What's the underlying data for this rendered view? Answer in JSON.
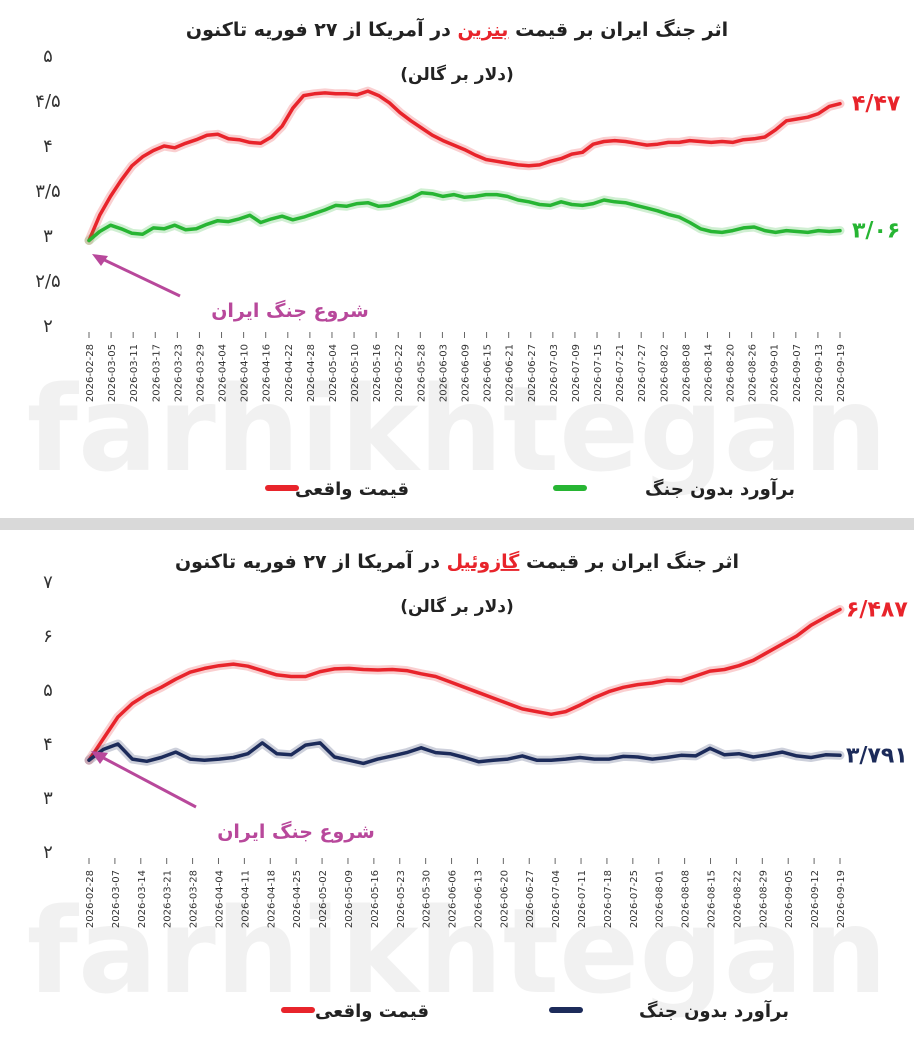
{
  "chart_data": [
    {
      "type": "line",
      "title_parts": [
        "اثر جنگ ایران بر قیمت ",
        "بنزین",
        " در آمریکا از ۲۷ فوریه تاکنون"
      ],
      "subtitle": "(دلار بر گالن)",
      "ylim": [
        2,
        5
      ],
      "yticks": [
        "۲",
        "۲/۵",
        "۳",
        "۳/۵",
        "۴",
        "۴/۵",
        "۵"
      ],
      "ytick_values": [
        2,
        2.5,
        3,
        3.5,
        4,
        4.5,
        5
      ],
      "xticks": [
        "2026-02-28",
        "2026-03-05",
        "2026-03-11",
        "2026-03-17",
        "2026-03-23",
        "2026-03-29",
        "2026-04-04",
        "2026-04-10",
        "2026-04-16",
        "2026-04-22",
        "2026-04-28",
        "2026-05-04",
        "2026-05-10",
        "2026-05-16",
        "2026-05-22",
        "2026-05-28",
        "2026-06-03",
        "2026-06-09",
        "2026-06-15",
        "2026-06-21",
        "2026-06-27",
        "2026-07-03",
        "2026-07-09",
        "2026-07-15",
        "2026-07-21",
        "2026-07-27",
        "2026-08-02",
        "2026-08-08",
        "2026-08-14",
        "2026-08-20",
        "2026-08-26",
        "2026-09-01",
        "2026-09-07",
        "2026-09-13",
        "2026-09-19"
      ],
      "series": [
        {
          "name": "قیمت واقعی",
          "color": "#e8242b",
          "end_label": "۴/۴۷",
          "values": [
            2.95,
            3.23,
            3.44,
            3.62,
            3.78,
            3.88,
            3.95,
            4.0,
            3.98,
            4.03,
            4.07,
            4.12,
            4.13,
            4.08,
            4.07,
            4.04,
            4.03,
            4.1,
            4.22,
            4.42,
            4.56,
            4.58,
            4.59,
            4.58,
            4.58,
            4.57,
            4.61,
            4.56,
            4.48,
            4.37,
            4.28,
            4.2,
            4.12,
            4.06,
            4.01,
            3.96,
            3.9,
            3.85,
            3.83,
            3.81,
            3.79,
            3.78,
            3.79,
            3.83,
            3.86,
            3.91,
            3.93,
            4.02,
            4.05,
            4.06,
            4.05,
            4.03,
            4.01,
            4.02,
            4.04,
            4.04,
            4.06,
            4.05,
            4.04,
            4.05,
            4.04,
            4.07,
            4.08,
            4.1,
            4.18,
            4.28,
            4.3,
            4.32,
            4.36,
            4.44,
            4.47
          ]
        },
        {
          "name": "برآورد بدون جنگ",
          "color": "#27b533",
          "end_label": "۳/۰۶",
          "values": [
            2.95,
            3.05,
            3.12,
            3.08,
            3.03,
            3.02,
            3.09,
            3.08,
            3.12,
            3.07,
            3.08,
            3.13,
            3.17,
            3.16,
            3.19,
            3.23,
            3.15,
            3.19,
            3.22,
            3.18,
            3.21,
            3.25,
            3.29,
            3.34,
            3.33,
            3.36,
            3.37,
            3.33,
            3.34,
            3.38,
            3.42,
            3.48,
            3.47,
            3.44,
            3.46,
            3.43,
            3.44,
            3.46,
            3.46,
            3.44,
            3.4,
            3.38,
            3.35,
            3.34,
            3.38,
            3.35,
            3.34,
            3.36,
            3.4,
            3.38,
            3.37,
            3.34,
            3.31,
            3.28,
            3.24,
            3.21,
            3.15,
            3.08,
            3.05,
            3.04,
            3.06,
            3.09,
            3.1,
            3.06,
            3.04,
            3.06,
            3.05,
            3.04,
            3.06,
            3.05,
            3.06
          ]
        }
      ],
      "annotation": "شروع جنگ ایران",
      "legend_position": "bottom-center",
      "watermark": "farhikhtegan"
    },
    {
      "type": "line",
      "title_parts": [
        "اثر جنگ ایران بر قیمت ",
        "گازوئیل",
        " در آمریکا از ۲۷ فوریه تاکنون"
      ],
      "subtitle": "(دلار بر گالن)",
      "ylim": [
        2,
        7
      ],
      "yticks": [
        "۲",
        "۳",
        "۴",
        "۵",
        "۶",
        "۷"
      ],
      "ytick_values": [
        2,
        3,
        4,
        5,
        6,
        7
      ],
      "xticks": [
        "2026-02-28",
        "2026-03-07",
        "2026-03-14",
        "2026-03-21",
        "2026-03-28",
        "2026-04-04",
        "2026-04-11",
        "2026-04-18",
        "2026-04-25",
        "2026-05-02",
        "2026-05-09",
        "2026-05-16",
        "2026-05-23",
        "2026-05-30",
        "2026-06-06",
        "2026-06-13",
        "2026-06-20",
        "2026-06-27",
        "2026-07-04",
        "2026-07-11",
        "2026-07-18",
        "2026-07-25",
        "2026-08-01",
        "2026-08-08",
        "2026-08-15",
        "2026-08-22",
        "2026-08-29",
        "2026-09-05",
        "2026-09-12",
        "2026-09-19"
      ],
      "series": [
        {
          "name": "قیمت واقعی",
          "color": "#e8242b",
          "end_label": "۶/۴۸۷",
          "values": [
            3.7,
            4.1,
            4.5,
            4.75,
            4.92,
            5.05,
            5.2,
            5.33,
            5.4,
            5.45,
            5.48,
            5.44,
            5.36,
            5.28,
            5.25,
            5.25,
            5.34,
            5.39,
            5.4,
            5.38,
            5.37,
            5.38,
            5.36,
            5.3,
            5.25,
            5.15,
            5.05,
            4.95,
            4.85,
            4.75,
            4.65,
            4.6,
            4.55,
            4.6,
            4.72,
            4.86,
            4.97,
            5.05,
            5.1,
            5.13,
            5.18,
            5.17,
            5.26,
            5.35,
            5.38,
            5.45,
            5.55,
            5.7,
            5.85,
            6.0,
            6.2,
            6.35,
            6.49
          ]
        },
        {
          "name": "برآورد بدون جنگ",
          "color": "#1c2b5a",
          "end_label": "۳/۷۹۱",
          "values": [
            3.7,
            3.9,
            4.0,
            3.72,
            3.68,
            3.75,
            3.85,
            3.72,
            3.7,
            3.72,
            3.75,
            3.82,
            4.02,
            3.82,
            3.8,
            3.98,
            4.02,
            3.76,
            3.7,
            3.64,
            3.72,
            3.78,
            3.84,
            3.93,
            3.84,
            3.82,
            3.75,
            3.67,
            3.7,
            3.72,
            3.78,
            3.7,
            3.7,
            3.72,
            3.75,
            3.72,
            3.72,
            3.77,
            3.76,
            3.72,
            3.75,
            3.79,
            3.78,
            3.92,
            3.8,
            3.82,
            3.76,
            3.8,
            3.85,
            3.78,
            3.75,
            3.8,
            3.79
          ]
        }
      ],
      "annotation": "شروع جنگ ایران",
      "legend_position": "bottom-center",
      "watermark": "farhikhtegan"
    }
  ]
}
